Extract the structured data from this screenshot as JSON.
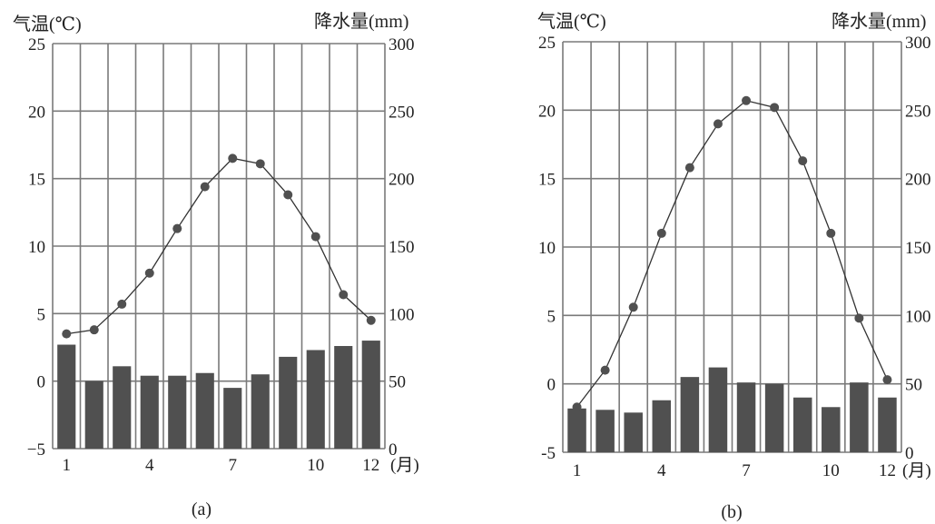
{
  "chart_data": [
    {
      "type": "bar+line",
      "caption": "(a)",
      "y_left_label": "气温(℃)",
      "y_right_label": "降水量(mm)",
      "x_unit": "(月)",
      "x_tick_labels": [
        "1",
        "4",
        "7",
        "10",
        "12"
      ],
      "y_left_ticks": [
        "25",
        "20",
        "15",
        "10",
        "5",
        "0",
        "−5"
      ],
      "y_right_ticks": [
        "300",
        "250",
        "200",
        "150",
        "100",
        "50",
        "0"
      ],
      "y_left_range": [
        -5,
        25
      ],
      "y_right_range": [
        0,
        300
      ],
      "months": [
        1,
        2,
        3,
        4,
        5,
        6,
        7,
        8,
        9,
        10,
        11,
        12
      ],
      "temperature": [
        3.5,
        3.8,
        5.7,
        8.0,
        11.3,
        14.4,
        16.5,
        16.1,
        13.8,
        10.7,
        6.4,
        4.5
      ],
      "precipitation": [
        77,
        50,
        61,
        54,
        54,
        56,
        45,
        55,
        68,
        73,
        76,
        80
      ]
    },
    {
      "type": "bar+line",
      "caption": "(b)",
      "y_left_label": "气温(℃)",
      "y_right_label": "降水量(mm)",
      "x_unit": "(月)",
      "x_tick_labels": [
        "1",
        "4",
        "7",
        "10",
        "12"
      ],
      "y_left_ticks": [
        "25",
        "20",
        "15",
        "10",
        "5",
        "0",
        "-5"
      ],
      "y_right_ticks": [
        "300",
        "250",
        "200",
        "150",
        "100",
        "50",
        "0"
      ],
      "y_left_range": [
        -5,
        25
      ],
      "y_right_range": [
        0,
        300
      ],
      "months": [
        1,
        2,
        3,
        4,
        5,
        6,
        7,
        8,
        9,
        10,
        11,
        12
      ],
      "temperature": [
        -1.7,
        1.0,
        5.6,
        11.0,
        15.8,
        19.0,
        20.7,
        20.2,
        16.3,
        11.0,
        4.8,
        0.3
      ],
      "precipitation": [
        32,
        31,
        29,
        38,
        55,
        62,
        51,
        50,
        40,
        33,
        51,
        40
      ]
    }
  ]
}
